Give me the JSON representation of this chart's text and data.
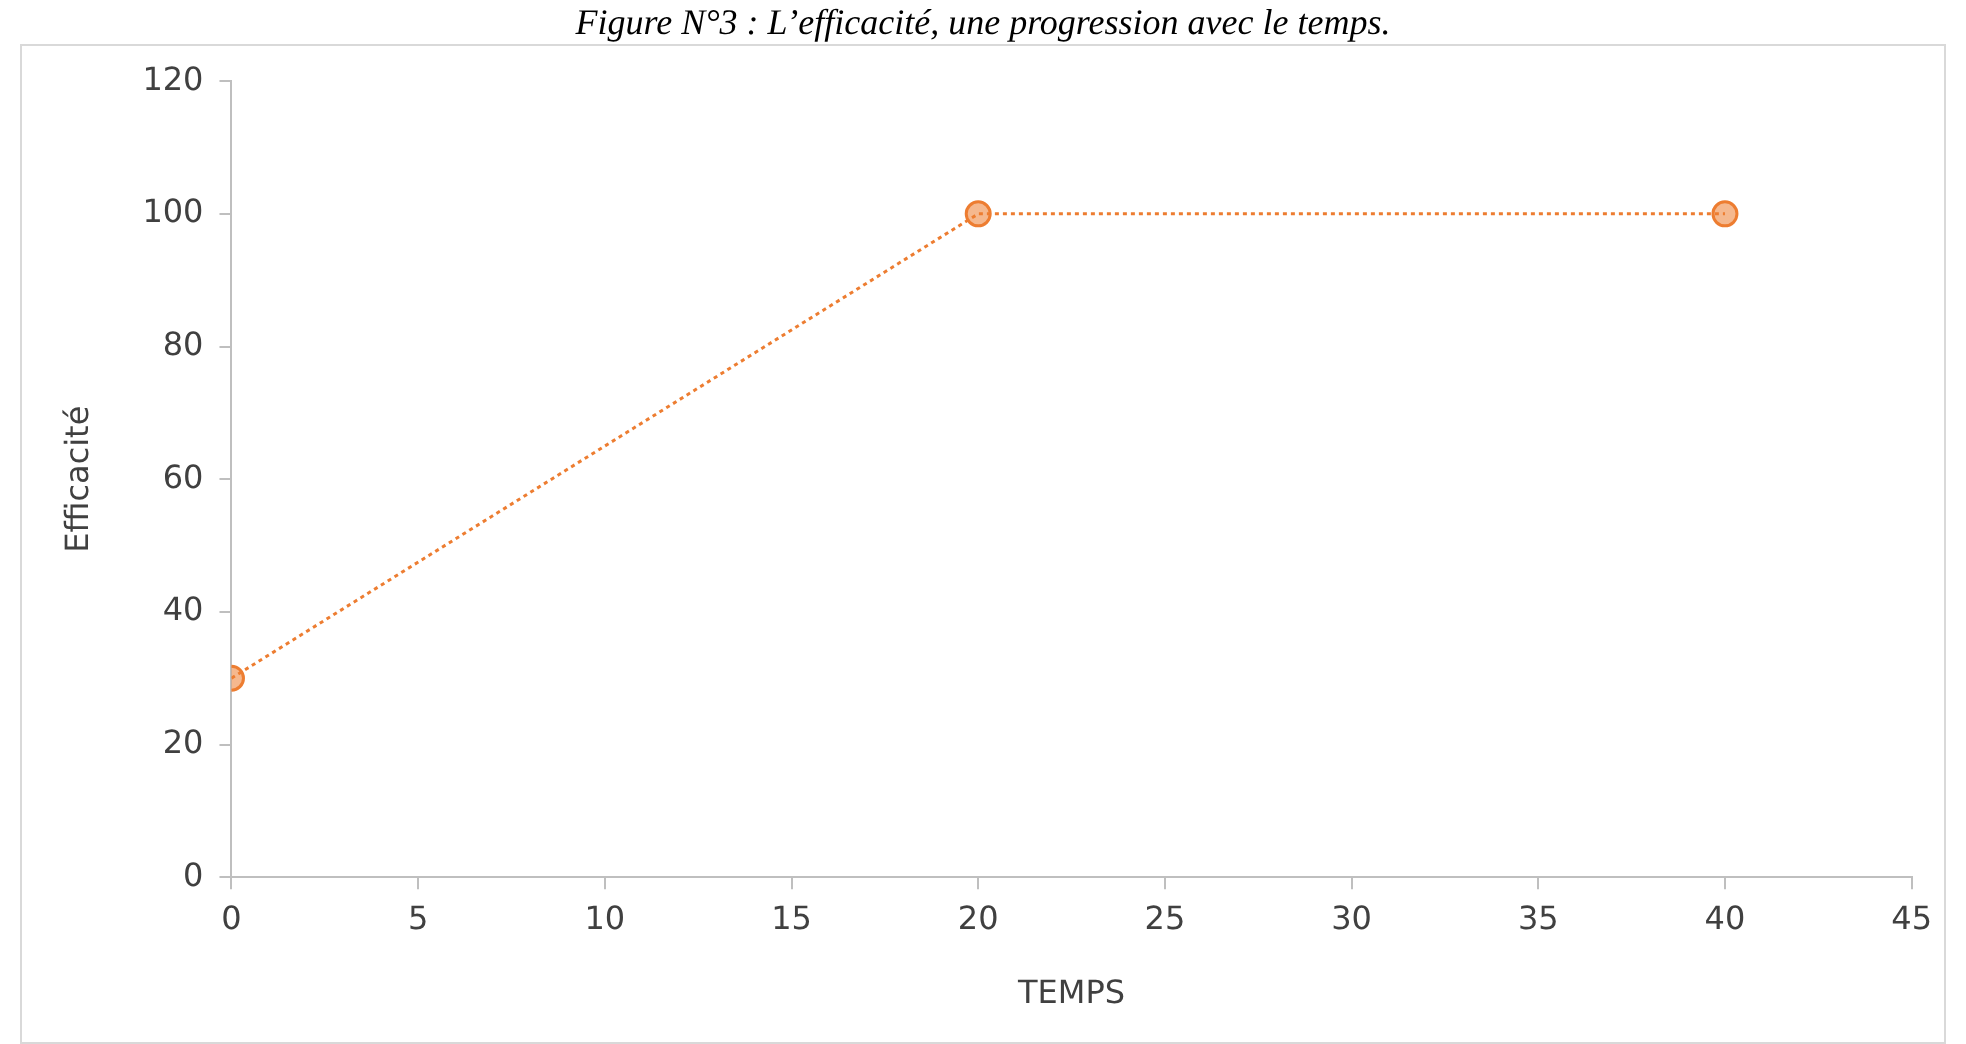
{
  "chart_data": {
    "type": "line",
    "title": "Figure N°3 : L’efficacité, une progression avec le temps.",
    "xlabel": "TEMPS",
    "ylabel": "Efficacité",
    "x": [
      0,
      20,
      40
    ],
    "series": [
      {
        "color": "#ed7d31",
        "values": [
          30,
          100,
          100
        ]
      }
    ],
    "xlim": [
      0,
      45
    ],
    "xticks": [
      0,
      5,
      10,
      15,
      20,
      25,
      30,
      35,
      40,
      45
    ],
    "ylim": [
      0,
      120
    ],
    "yticks": [
      0,
      20,
      40,
      60,
      80,
      100,
      120
    ],
    "grid": false,
    "legend": false,
    "marker": "circle",
    "line_style": "dotted"
  }
}
